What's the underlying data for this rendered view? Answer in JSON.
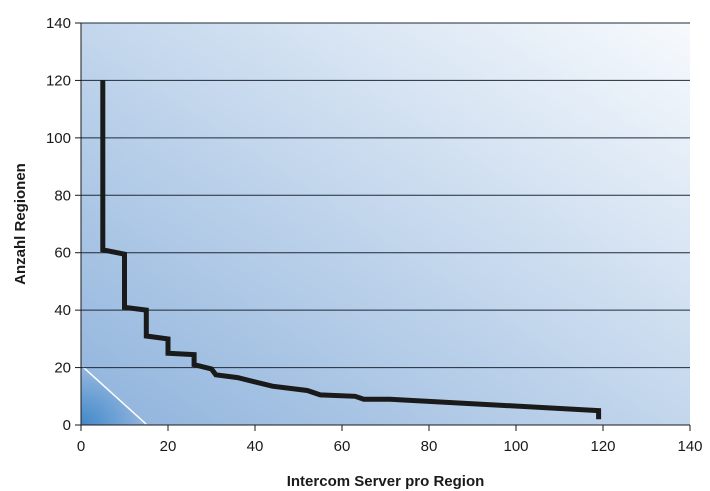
{
  "chart_data": {
    "type": "line",
    "title": "",
    "xlabel": "Intercom Server pro Region",
    "ylabel": "Anzahl Regionen",
    "xlim": [
      0,
      140
    ],
    "ylim": [
      0,
      140
    ],
    "x_ticks": [
      "0",
      "20",
      "40",
      "60",
      "80",
      "100",
      "120",
      "140"
    ],
    "y_ticks": [
      "0",
      "20",
      "40",
      "60",
      "80",
      "100",
      "120",
      "140"
    ],
    "grid": "horizontal",
    "legend": "none",
    "colors": {
      "line": "#1a1a1a",
      "gridline": "#1e2a3a",
      "plot_bg_dark": "#8fb3dc",
      "plot_bg_light": "#f7fafd",
      "corner_accent": "#3f87c9",
      "decor_line": "#ffffff"
    },
    "series": [
      {
        "x": [
          5,
          5,
          10,
          10,
          15,
          15,
          20,
          20,
          26,
          26,
          30,
          31,
          36,
          44,
          52,
          55,
          63,
          65,
          71,
          119,
          119
        ],
        "y": [
          120,
          61,
          59.5,
          41,
          40,
          31,
          30,
          25,
          24.5,
          21,
          19.5,
          17.5,
          16.5,
          13.5,
          12,
          10.5,
          10,
          9,
          9,
          5,
          2
        ]
      }
    ]
  }
}
